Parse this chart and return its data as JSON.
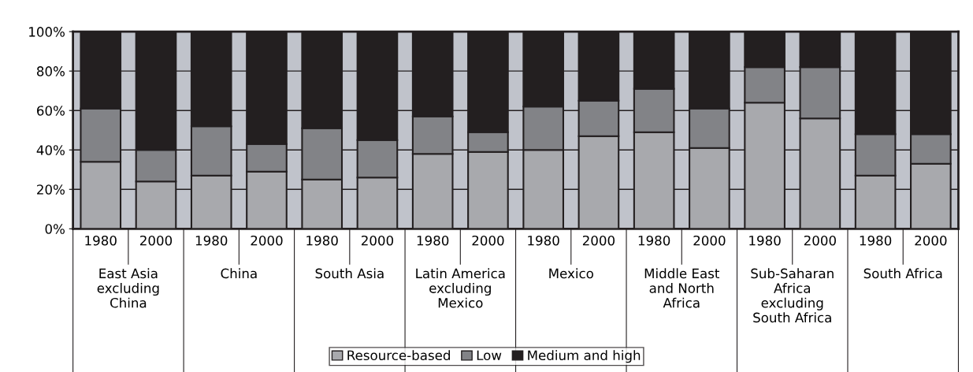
{
  "chart_data": {
    "type": "bar",
    "stacked": true,
    "categories": [
      "1980",
      "2000",
      "1980",
      "2000",
      "1980",
      "2000",
      "1980",
      "2000",
      "1980",
      "2000",
      "1980",
      "2000",
      "1980",
      "2000",
      "1980",
      "2000"
    ],
    "series": [
      {
        "name": "Resource-based",
        "color": "#a8a9ad",
        "values": [
          34,
          24,
          27,
          29,
          25,
          26,
          38,
          39,
          40,
          47,
          49,
          41,
          64,
          56,
          27,
          33
        ]
      },
      {
        "name": "Low",
        "color": "#828387",
        "values": [
          27,
          16,
          25,
          14,
          26,
          19,
          19,
          10,
          22,
          18,
          22,
          20,
          18,
          26,
          21,
          15
        ]
      },
      {
        "name": "Medium and high",
        "color": "#231f20",
        "values": [
          39,
          60,
          48,
          57,
          49,
          55,
          43,
          51,
          38,
          35,
          29,
          39,
          18,
          18,
          52,
          52
        ]
      }
    ],
    "ylim": [
      0,
      100
    ],
    "yticks": [
      {
        "value": 0,
        "label": "0%"
      },
      {
        "value": 20,
        "label": "20%"
      },
      {
        "value": 40,
        "label": "40%"
      },
      {
        "value": 60,
        "label": "60%"
      },
      {
        "value": 80,
        "label": "80%"
      },
      {
        "value": 100,
        "label": "100%"
      }
    ],
    "grid": "y",
    "legend": "bottom",
    "annotations": [
      "East Asia\nexcluding\nChina",
      "China",
      "South Asia",
      "Latin America\nexcluding\nMexico",
      "Mexico",
      "Middle East\nand North\nAfrica",
      "Sub-Saharan\nAfrica\nexcluding\nSouth Africa",
      "South Africa"
    ]
  }
}
